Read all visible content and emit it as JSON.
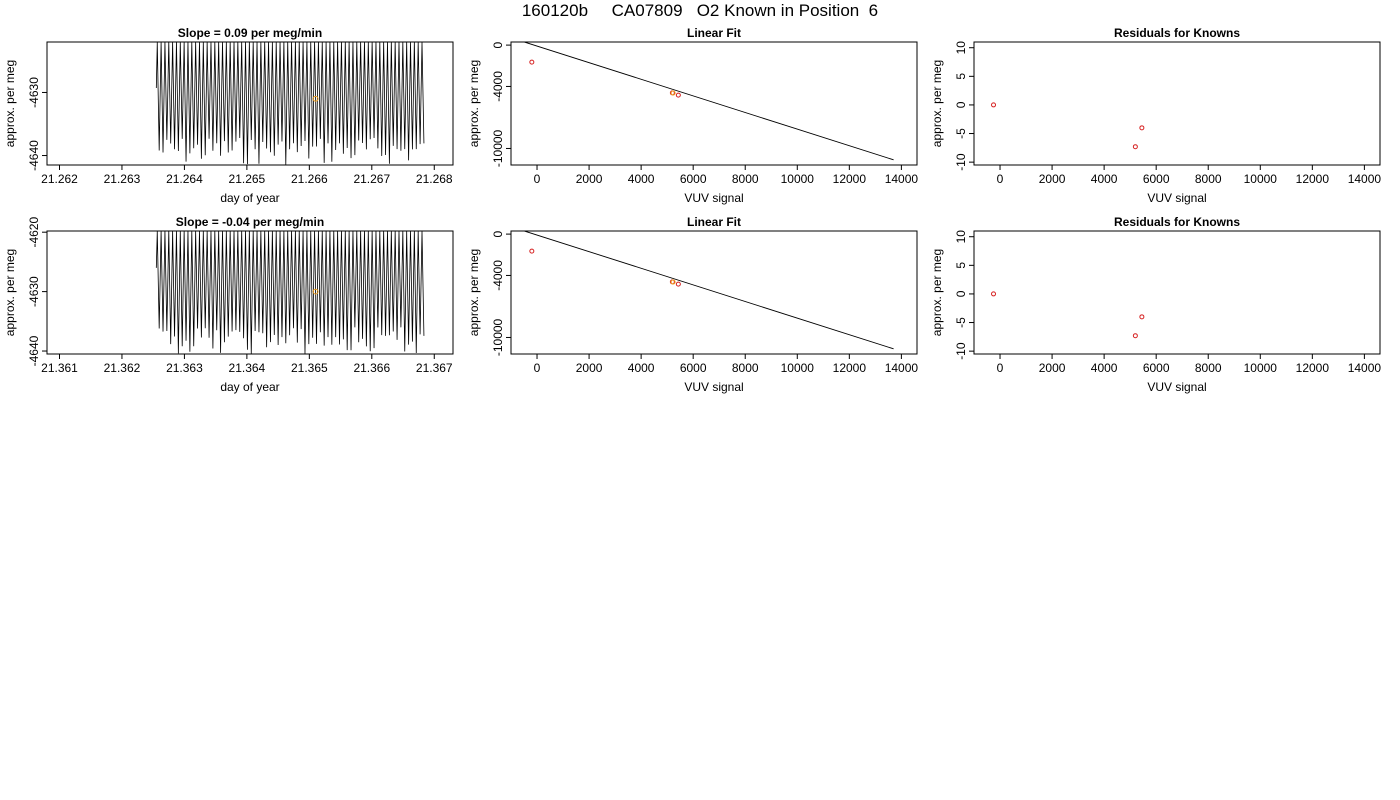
{
  "page_title": "160120b     CA07809   O2 Known in Position  6",
  "colors": {
    "trace": "#000000",
    "point_red": "#d62020",
    "point_orange": "#f0a020",
    "fit_line": "#000000"
  },
  "chart_data": [
    {
      "type": "line",
      "title": "Slope =  0.09  per meg/min",
      "xlabel": "day of year",
      "ylabel": "approx. per meg",
      "xlim": [
        21.2618,
        21.2683
      ],
      "ylim": [
        -4641.5,
        -4622.0
      ],
      "xticks": [
        21.262,
        21.263,
        21.264,
        21.265,
        21.266,
        21.267,
        21.268
      ],
      "xtick_labels": [
        "21.262",
        "21.263",
        "21.264",
        "21.265",
        "21.266",
        "21.267",
        "21.268"
      ],
      "yticks": [
        -4630,
        -4640
      ],
      "ytick_labels": [
        "-4630",
        "-4640"
      ],
      "series": [
        {
          "x_start": 21.26355,
          "x_end": 21.26785,
          "n_cycles": 70,
          "y_top": -4622.0,
          "y_bottom_min": -4641.5,
          "y_bottom_max": -4637.0,
          "y_first": -4629.3
        }
      ],
      "highlight_points": [
        {
          "x": 21.2661,
          "y": -4631.0
        }
      ]
    },
    {
      "type": "scatter",
      "title": "Linear Fit",
      "xlabel": "VUV signal",
      "ylabel": "approx. per meg",
      "xlim": [
        -1000,
        14600
      ],
      "ylim": [
        -11600,
        300
      ],
      "xticks": [
        0,
        2000,
        4000,
        6000,
        8000,
        10000,
        12000,
        14000
      ],
      "xtick_labels": [
        "0",
        "2000",
        "4000",
        "6000",
        "8000",
        "10000",
        "12000",
        "14000"
      ],
      "yticks": [
        0,
        -4000,
        -10000
      ],
      "ytick_labels": [
        "0",
        "-4000",
        "-10000"
      ],
      "fit_line": [
        [
          -500,
          310
        ],
        [
          13700,
          -11100
        ]
      ],
      "points": [
        {
          "x": -200,
          "y": -1650,
          "color": "red"
        },
        {
          "x": 5200,
          "y": -4620,
          "color": "red"
        },
        {
          "x": 5430,
          "y": -4840,
          "color": "red"
        },
        {
          "x": 5230,
          "y": -4640,
          "color": "orange"
        }
      ]
    },
    {
      "type": "scatter",
      "title": "Residuals for Knowns",
      "xlabel": "VUV signal",
      "ylabel": "approx. per meg",
      "xlim": [
        -1000,
        14600
      ],
      "ylim": [
        -10.5,
        11.0
      ],
      "xticks": [
        0,
        2000,
        4000,
        6000,
        8000,
        10000,
        12000,
        14000
      ],
      "xtick_labels": [
        "0",
        "2000",
        "4000",
        "6000",
        "8000",
        "10000",
        "12000",
        "14000"
      ],
      "yticks": [
        10,
        5,
        0,
        -5,
        -10
      ],
      "ytick_labels": [
        "10",
        "5",
        "0",
        "-5",
        "-10"
      ],
      "points": [
        {
          "x": -250,
          "y": 0,
          "color": "red"
        },
        {
          "x": 5450,
          "y": -4.0,
          "color": "red"
        },
        {
          "x": 5200,
          "y": -7.3,
          "color": "red"
        }
      ]
    },
    {
      "type": "line",
      "title": "Slope =  -0.04  per meg/min",
      "xlabel": "day of year",
      "ylabel": "approx. per meg",
      "xlim": [
        21.3608,
        21.3673
      ],
      "ylim": [
        -4640.5,
        -4619.8
      ],
      "xticks": [
        21.361,
        21.362,
        21.363,
        21.364,
        21.365,
        21.366,
        21.367
      ],
      "xtick_labels": [
        "21.361",
        "21.362",
        "21.363",
        "21.364",
        "21.365",
        "21.366",
        "21.367"
      ],
      "yticks": [
        -4620,
        -4630,
        -4640
      ],
      "ytick_labels": [
        "-4620",
        "-4630",
        "-4640"
      ],
      "series": [
        {
          "x_start": 21.36255,
          "x_end": 21.36685,
          "n_cycles": 70,
          "y_top": -4619.8,
          "y_bottom_min": -4640.5,
          "y_bottom_max": -4636.0,
          "y_first": -4626.0
        }
      ],
      "highlight_points": [
        {
          "x": 21.3651,
          "y": -4630.0
        }
      ]
    },
    {
      "type": "scatter",
      "title": "Linear Fit",
      "xlabel": "VUV signal",
      "ylabel": "approx. per meg",
      "xlim": [
        -1000,
        14600
      ],
      "ylim": [
        -11600,
        300
      ],
      "xticks": [
        0,
        2000,
        4000,
        6000,
        8000,
        10000,
        12000,
        14000
      ],
      "xtick_labels": [
        "0",
        "2000",
        "4000",
        "6000",
        "8000",
        "10000",
        "12000",
        "14000"
      ],
      "yticks": [
        0,
        -4000,
        -10000
      ],
      "ytick_labels": [
        "0",
        "-4000",
        "-10000"
      ],
      "fit_line": [
        [
          -500,
          310
        ],
        [
          13700,
          -11100
        ]
      ],
      "points": [
        {
          "x": -200,
          "y": -1650,
          "color": "red"
        },
        {
          "x": 5200,
          "y": -4620,
          "color": "red"
        },
        {
          "x": 5430,
          "y": -4840,
          "color": "red"
        },
        {
          "x": 5230,
          "y": -4640,
          "color": "orange"
        }
      ]
    },
    {
      "type": "scatter",
      "title": "Residuals for Knowns",
      "xlabel": "VUV signal",
      "ylabel": "approx. per meg",
      "xlim": [
        -1000,
        14600
      ],
      "ylim": [
        -10.5,
        11.0
      ],
      "xticks": [
        0,
        2000,
        4000,
        6000,
        8000,
        10000,
        12000,
        14000
      ],
      "xtick_labels": [
        "0",
        "2000",
        "4000",
        "6000",
        "8000",
        "10000",
        "12000",
        "14000"
      ],
      "yticks": [
        10,
        5,
        0,
        -5,
        -10
      ],
      "ytick_labels": [
        "10",
        "5",
        "0",
        "-5",
        "-10"
      ],
      "points": [
        {
          "x": -250,
          "y": 0,
          "color": "red"
        },
        {
          "x": 5450,
          "y": -4.0,
          "color": "red"
        },
        {
          "x": 5200,
          "y": -7.3,
          "color": "red"
        }
      ]
    }
  ]
}
